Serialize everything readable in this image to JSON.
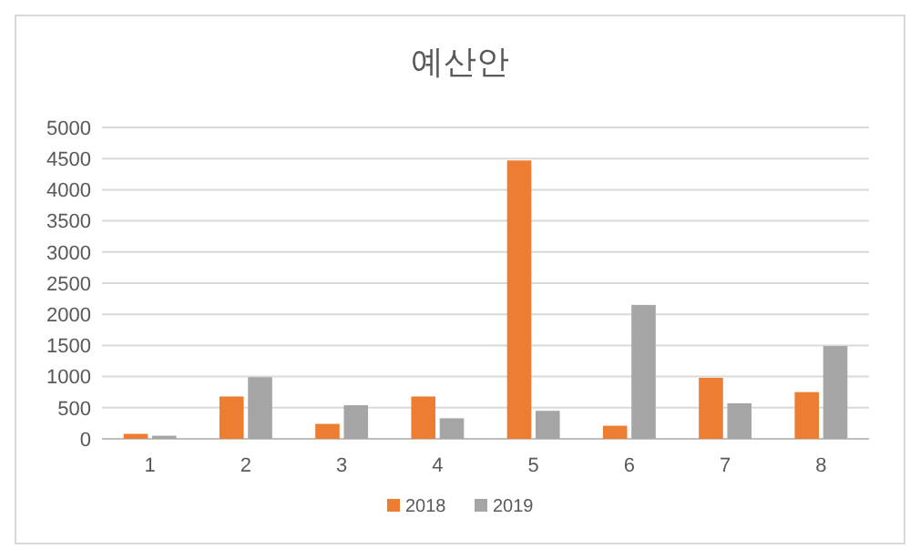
{
  "chart_data": {
    "type": "bar",
    "title": "예산안",
    "categories": [
      "1",
      "2",
      "3",
      "4",
      "5",
      "6",
      "7",
      "8"
    ],
    "series": [
      {
        "name": "2018",
        "color": "#ed7d31",
        "values": [
          80,
          680,
          240,
          680,
          4470,
          210,
          980,
          750
        ]
      },
      {
        "name": "2019",
        "color": "#a5a5a5",
        "values": [
          50,
          990,
          540,
          330,
          450,
          2150,
          570,
          1490
        ]
      }
    ],
    "ylim": [
      0,
      5000
    ],
    "yticks": [
      0,
      500,
      1000,
      1500,
      2000,
      2500,
      3000,
      3500,
      4000,
      4500,
      5000
    ],
    "grid": "y",
    "legend": "bottom"
  }
}
